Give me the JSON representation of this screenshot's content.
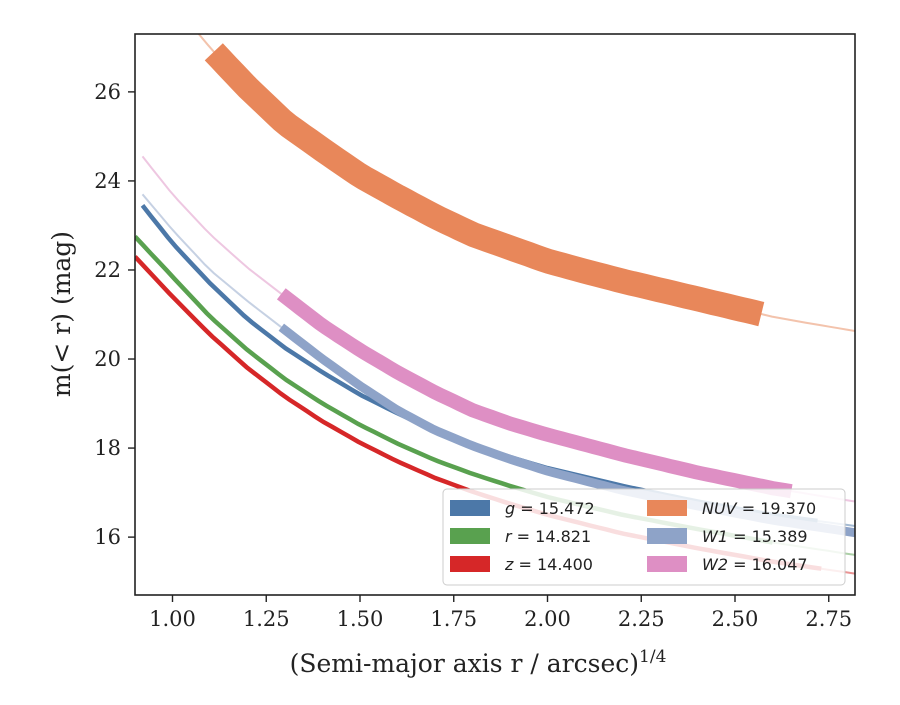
{
  "chart_data": {
    "type": "line",
    "title": "",
    "xlabel": "(Semi-major axis r / arcsec)",
    "xlabel_sup": "1/4",
    "ylabel": "m(< r) (mag)",
    "xlim": [
      0.9,
      2.82
    ],
    "ylim": [
      27.3,
      14.7
    ],
    "y_inverted": true,
    "grid": false,
    "legend_position": "lower-right",
    "xticks": [
      "1.00",
      "1.25",
      "1.50",
      "1.75",
      "2.00",
      "2.25",
      "2.50",
      "2.75"
    ],
    "yticks": [
      "16",
      "18",
      "20",
      "22",
      "24",
      "26"
    ],
    "series": [
      {
        "name": "g = 15.472",
        "band": "g",
        "value": "15.472",
        "color": "#4c78a8",
        "x": [
          0.92,
          1.0,
          1.1,
          1.2,
          1.3,
          1.4,
          1.5,
          1.6,
          1.7,
          1.8,
          1.9,
          2.0,
          2.2,
          2.4,
          2.6,
          2.82
        ],
        "y": [
          23.45,
          22.6,
          21.7,
          20.9,
          20.25,
          19.7,
          19.2,
          18.78,
          18.4,
          18.07,
          17.8,
          17.55,
          17.15,
          16.8,
          16.5,
          16.25
        ],
        "solid_range": [
          0.9,
          2.72
        ],
        "band_width": 0.05
      },
      {
        "name": "r = 14.821",
        "band": "r",
        "value": "14.821",
        "color": "#59a14f",
        "x": [
          0.9,
          1.0,
          1.1,
          1.2,
          1.3,
          1.4,
          1.5,
          1.6,
          1.7,
          1.8,
          1.9,
          2.0,
          2.2,
          2.4,
          2.6,
          2.82
        ],
        "y": [
          22.75,
          21.85,
          20.95,
          20.2,
          19.55,
          19.0,
          18.52,
          18.1,
          17.73,
          17.42,
          17.15,
          16.9,
          16.5,
          16.18,
          15.88,
          15.6
        ],
        "solid_range": [
          0.9,
          2.6
        ],
        "band_width": 0.05
      },
      {
        "name": "z = 14.400",
        "band": "z",
        "value": "14.400",
        "color": "#d62728",
        "x": [
          0.9,
          1.0,
          1.1,
          1.2,
          1.3,
          1.4,
          1.5,
          1.6,
          1.7,
          1.8,
          1.9,
          2.0,
          2.2,
          2.4,
          2.6,
          2.82
        ],
        "y": [
          22.3,
          21.4,
          20.55,
          19.8,
          19.15,
          18.6,
          18.12,
          17.7,
          17.33,
          17.02,
          16.75,
          16.5,
          16.08,
          15.75,
          15.45,
          15.18
        ],
        "solid_range": [
          0.9,
          2.73
        ],
        "band_width": 0.05
      },
      {
        "name": "NUV = 19.370",
        "band": "NUV",
        "value": "19.370",
        "color": "#e8875a",
        "x": [
          1.05,
          1.11,
          1.2,
          1.3,
          1.4,
          1.5,
          1.6,
          1.7,
          1.8,
          1.9,
          2.0,
          2.1,
          2.2,
          2.3,
          2.4,
          2.5,
          2.6,
          2.7,
          2.82
        ],
        "y": [
          27.5,
          26.9,
          26.1,
          25.3,
          24.7,
          24.12,
          23.65,
          23.2,
          22.8,
          22.5,
          22.2,
          21.97,
          21.75,
          21.55,
          21.35,
          21.15,
          20.95,
          20.8,
          20.63
        ],
        "solid_range": [
          1.11,
          2.57
        ],
        "band_width": 0.28
      },
      {
        "name": "W1 = 15.389",
        "band": "W1",
        "value": "15.389",
        "color": "#8ea3c8",
        "x": [
          0.92,
          1.0,
          1.1,
          1.2,
          1.3,
          1.4,
          1.5,
          1.6,
          1.7,
          1.8,
          1.9,
          2.0,
          2.2,
          2.4,
          2.6,
          2.82
        ],
        "y": [
          23.7,
          22.9,
          22.0,
          21.3,
          20.65,
          20.0,
          19.4,
          18.85,
          18.4,
          18.05,
          17.75,
          17.48,
          17.05,
          16.7,
          16.38,
          16.1
        ],
        "solid_range": [
          1.29,
          2.82
        ],
        "band_width": 0.1
      },
      {
        "name": "W2 = 16.047",
        "band": "W2",
        "value": "16.047",
        "color": "#de8fc4",
        "x": [
          0.92,
          1.0,
          1.1,
          1.2,
          1.3,
          1.4,
          1.5,
          1.6,
          1.7,
          1.8,
          1.9,
          2.0,
          2.2,
          2.4,
          2.6,
          2.82
        ],
        "y": [
          24.55,
          23.7,
          22.8,
          22.05,
          21.4,
          20.75,
          20.2,
          19.7,
          19.25,
          18.85,
          18.55,
          18.3,
          17.85,
          17.45,
          17.1,
          16.8
        ],
        "solid_range": [
          1.29,
          2.65
        ],
        "band_width": 0.16
      }
    ]
  }
}
